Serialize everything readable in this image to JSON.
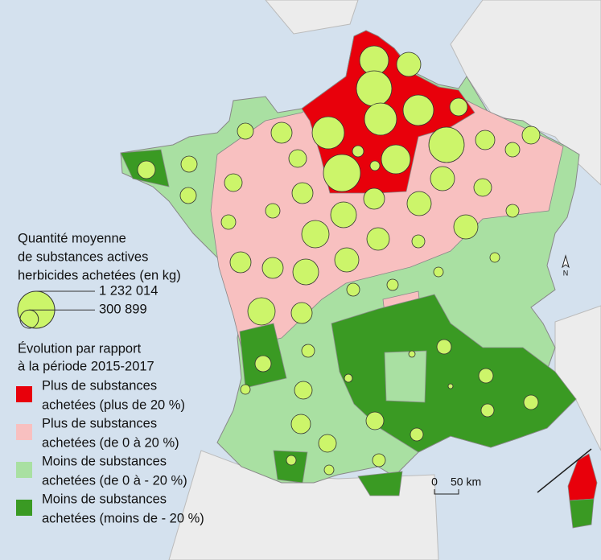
{
  "legend": {
    "title": [
      "Quantité moyenne",
      "de substances actives",
      "herbicides achetées (en kg)"
    ],
    "circles": [
      {
        "value": 1232014,
        "label": "1 232 014"
      },
      {
        "value": 300899,
        "label": "300 899"
      }
    ],
    "classes_title": [
      "Évolution par rapport",
      "à la période 2015-2017"
    ],
    "classes": [
      {
        "label": [
          "Plus de substances",
          "achetées (plus de 20 %)"
        ],
        "color": "#e8000b"
      },
      {
        "label": [
          "Plus de substances",
          "achetées (de 0 à 20 %)"
        ],
        "color": "#f8c0c0"
      },
      {
        "label": [
          "Moins de substances",
          "achetées (de 0 à - 20 %)"
        ],
        "color": "#a9e0a2"
      },
      {
        "label": [
          "Moins de substances",
          "achetées (moins de - 20 %)"
        ],
        "color": "#3a9a23"
      }
    ]
  },
  "departments": [
    754600,
    524000,
    1127000,
    840800,
    281800,
    931600,
    931600,
    393600,
    233000,
    1127000,
    335400,
    281800,
    188600,
    1232000,
    754600,
    114100,
    83800,
    281800,
    281800,
    233000,
    233000,
    281800,
    524000,
    281800,
    524000,
    393600,
    393600,
    596200,
    188600,
    188600,
    524000,
    149100,
    673100,
    456500,
    149100,
    393600,
    596200,
    524000,
    393600,
    673100,
    393600,
    149100,
    114100,
    83800,
    83800,
    149100,
    233000,
    281800,
    58200,
    37300,
    188600,
    188600,
    188600,
    149100,
    149100,
    281800,
    281800,
    335400,
    83800,
    83800,
    149100,
    83800,
    21000
  ],
  "scale": {
    "zero": "0",
    "distance": "50 km"
  },
  "north": "N"
}
